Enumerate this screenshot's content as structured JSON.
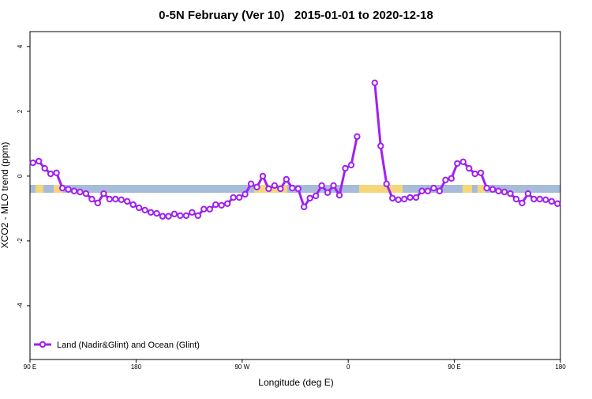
{
  "chart_data": {
    "type": "line",
    "title": "0-5N February (Ver 10)   2015-01-01 to 2020-12-18",
    "x_label": "Longitude (deg E)",
    "y_label": "XCO2 - MLO trend (ppm)",
    "x": [
      92.5,
      97.5,
      102.5,
      107.5,
      112.5,
      117.5,
      122.5,
      127.5,
      132.5,
      137.5,
      142.5,
      147.5,
      152.5,
      157.5,
      162.5,
      167.5,
      172.5,
      177.5,
      182.5,
      187.5,
      192.5,
      197.5,
      202.5,
      207.5,
      212.5,
      217.5,
      222.5,
      227.5,
      232.5,
      237.5,
      242.5,
      247.5,
      252.5,
      257.5,
      262.5,
      267.5,
      272.5,
      277.5,
      282.5,
      287.5,
      292.5,
      297.5,
      302.5,
      307.5,
      312.5,
      317.5,
      322.5,
      327.5,
      332.5,
      337.5,
      342.5,
      347.5,
      352.5,
      357.5,
      362.5,
      367.5,
      372.5,
      377.5,
      382.5,
      387.5,
      392.5,
      397.5,
      402.5,
      407.5,
      412.5,
      417.5,
      422.5,
      427.5,
      432.5,
      437.5,
      442.5,
      447.5,
      452.5,
      457.5,
      462.5,
      467.5,
      472.5,
      477.5,
      482.5,
      487.5,
      492.5,
      497.5,
      502.5,
      507.5,
      512.5,
      517.5,
      522.5,
      527.5,
      532.5,
      537.5
    ],
    "series": [
      {
        "name": "Land (Nadir&Glint) and Ocean (Glint)",
        "color": "#a020f0",
        "values": [
          0.41,
          0.46,
          0.24,
          0.07,
          0.1,
          -0.37,
          -0.41,
          -0.46,
          -0.49,
          -0.54,
          -0.71,
          -0.83,
          -0.54,
          -0.71,
          -0.71,
          -0.73,
          -0.78,
          -0.88,
          -0.98,
          -1.05,
          -1.12,
          -1.15,
          -1.24,
          -1.24,
          -1.17,
          -1.22,
          -1.22,
          -1.12,
          -1.22,
          -1.02,
          -1.02,
          -0.88,
          -0.9,
          -0.85,
          -0.66,
          -0.66,
          -0.56,
          -0.24,
          -0.34,
          0.0,
          -0.39,
          -0.29,
          -0.39,
          -0.1,
          -0.37,
          -0.39,
          -0.95,
          -0.68,
          -0.61,
          -0.29,
          -0.51,
          -0.29,
          -0.59,
          0.24,
          0.34,
          1.22,
          null,
          null,
          2.88,
          0.93,
          -0.24,
          -0.68,
          -0.73,
          -0.71,
          -0.66,
          -0.66,
          -0.46,
          -0.46,
          -0.37,
          -0.46,
          -0.12,
          -0.07,
          0.39,
          0.44,
          0.24,
          0.07,
          0.1,
          -0.37,
          -0.41,
          -0.46,
          -0.49,
          -0.54,
          -0.71,
          -0.83,
          -0.54,
          -0.71,
          -0.71,
          -0.73,
          -0.78,
          -0.85
        ]
      }
    ],
    "xlim": [
      90,
      540
    ],
    "xticks": [
      {
        "value": 90,
        "label": "90 E"
      },
      180,
      {
        "value": 270,
        "label": "90 W"
      },
      {
        "value": 360,
        "label": "0"
      },
      {
        "value": 450,
        "label": "90 E"
      },
      {
        "value": 540,
        "label": "180"
      }
    ],
    "ylim": [
      -5.66,
      4.46
    ],
    "yticks": [
      -4,
      -2,
      0,
      2,
      4
    ],
    "legend": "bottom-left"
  }
}
